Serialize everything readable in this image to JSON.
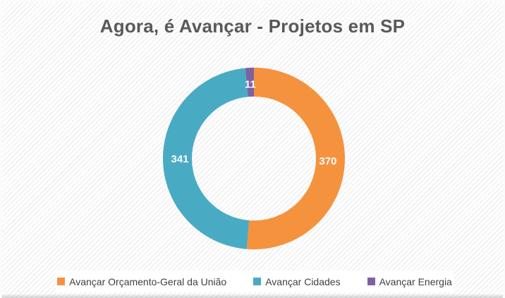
{
  "slide": {
    "title": "Agora, é Avançar - Projetos em SP"
  },
  "chart_data": {
    "type": "pie",
    "subtype": "donut",
    "title": "Agora, é Avançar - Projetos em SP",
    "categories": [
      "Avançar Orçamento-Geral da União",
      "Avançar Cidades",
      "Avançar Energia"
    ],
    "values": [
      370,
      341,
      11
    ],
    "data_labels": [
      "370",
      "341",
      "11"
    ],
    "colors": [
      "#F5923E",
      "#49ABC3",
      "#7D61A3"
    ],
    "data_label_color": "#FFFFFF",
    "start_angle_deg": 0,
    "direction": "clockwise",
    "legend_position": "bottom",
    "title_color": "#595959",
    "legend_text_color": "#404040"
  }
}
